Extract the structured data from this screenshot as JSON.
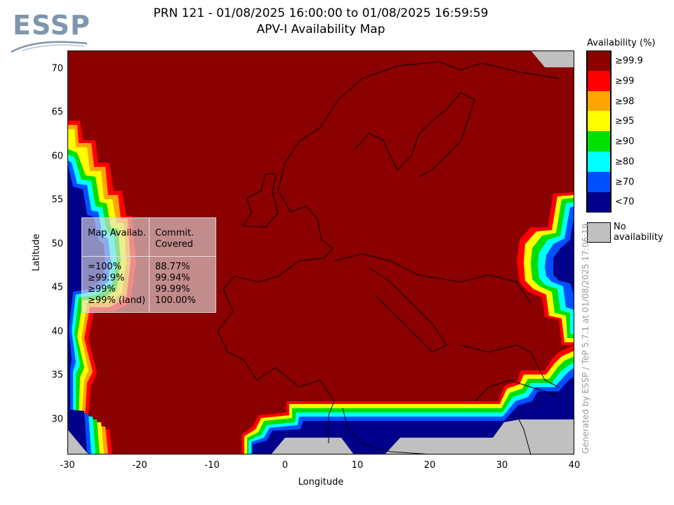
{
  "logo": {
    "text": "ESSP"
  },
  "title": {
    "line1": "PRN 121 - 01/08/2025 16:00:00 to 01/08/2025 16:59:59",
    "line2": "APV-I Availability Map"
  },
  "axes": {
    "xlabel": "Longitude",
    "ylabel": "Latitude",
    "xlim": [
      -30,
      40
    ],
    "ylim": [
      26,
      72
    ],
    "x_ticks": [
      "-30",
      "-20",
      "-10",
      "0",
      "10",
      "20",
      "30",
      "40"
    ],
    "y_ticks": [
      "70",
      "65",
      "60",
      "55",
      "50",
      "45",
      "40",
      "35",
      "30"
    ]
  },
  "legend": {
    "title": "Availability (%)",
    "items": [
      {
        "label": "≥99.9",
        "color": "#8b0000"
      },
      {
        "label": "≥99",
        "color": "#ff0000"
      },
      {
        "label": "≥98",
        "color": "#ffa500"
      },
      {
        "label": "≥95",
        "color": "#ffff00"
      },
      {
        "label": "≥90",
        "color": "#00e000"
      },
      {
        "label": "≥80",
        "color": "#00ffff"
      },
      {
        "label": "≥70",
        "color": "#0050ff"
      },
      {
        "label": "<70",
        "color": "#00008b"
      }
    ],
    "no_availability": {
      "label": "No availability",
      "color": "#c0c0c0"
    }
  },
  "stats_table": {
    "header_left": "Map Availab.",
    "header_right": "Commit. Covered",
    "rows": [
      {
        "label": "=100%",
        "value": "88.77%"
      },
      {
        "label": "≥99.9%",
        "value": "99.94%"
      },
      {
        "label": "≥99%",
        "value": "99.99%"
      },
      {
        "label": "≥99% (land)",
        "value": "100.00%"
      }
    ]
  },
  "footer_note": "Generated by ESSP / TeP 5.7.1 at 01/08/2025 17:06:19",
  "colors": {
    "main": "#8b0000",
    "red": "#ff0000",
    "orange": "#ffa500",
    "yellow": "#ffff00",
    "green": "#00e000",
    "cyan": "#00ffff",
    "blue": "#0050ff",
    "navy": "#00008b",
    "gray": "#c0c0c0"
  }
}
